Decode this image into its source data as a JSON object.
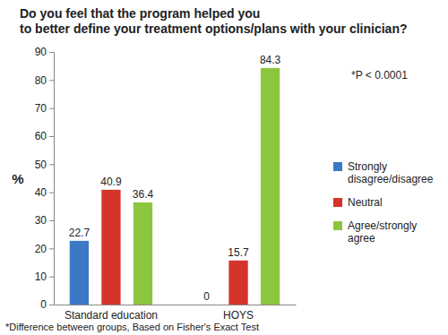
{
  "chart_data": {
    "type": "bar",
    "title": "Do you feel that the program helped you to better define your treatment options/plans with your clinician?",
    "y_label": "%",
    "categories": [
      "Standard education",
      "HOYS"
    ],
    "series": [
      {
        "name": "Strongly disagree/disagree",
        "color": "#3b78c6",
        "values": [
          22.7,
          0
        ]
      },
      {
        "name": "Neutral",
        "color": "#d5342b",
        "values": [
          40.9,
          15.7
        ]
      },
      {
        "name": "Agree/strongly agree",
        "color": "#8cc63f",
        "values": [
          36.4,
          84.3
        ]
      }
    ],
    "ylim": [
      0,
      90
    ],
    "yticks": [
      0,
      10,
      20,
      30,
      40,
      50,
      60,
      70,
      80,
      90
    ],
    "grid": false,
    "legend": "right",
    "data_labels": true,
    "annotations": [
      "*P < 0.0001",
      "*Difference between groups, Based on Fisher's Exact Test"
    ]
  }
}
